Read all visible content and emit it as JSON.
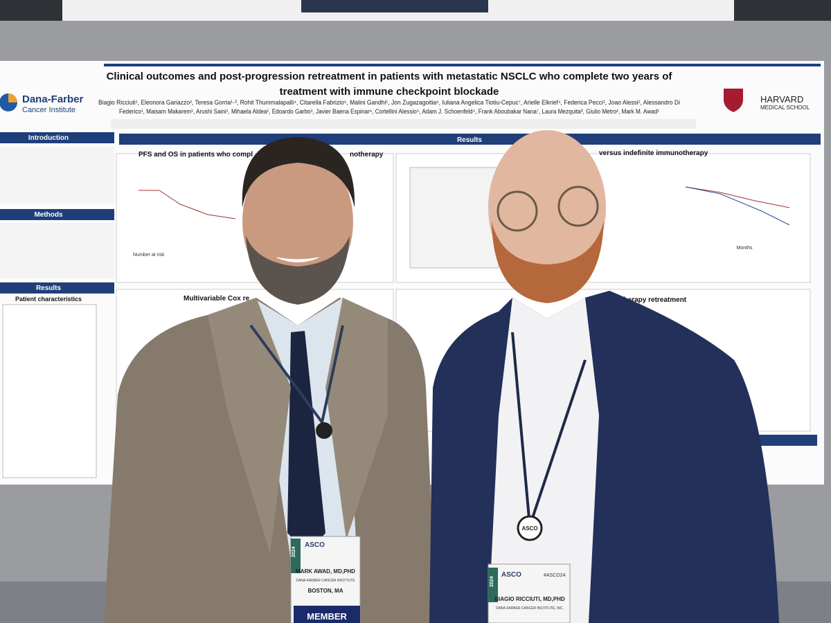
{
  "poster": {
    "title_lines": [
      "Clinical outcomes and post-progression retreatment in patients with metastatic NSCLC who complete two years of",
      "treatment with immune checkpoint blockade"
    ],
    "author_lines": [
      "Biagio Ricciuti¹, Eleonora Gariazzo², Teresa Gorria¹·³, Rohit Thummalapalli⁴, Citarella Fabrizio⁵, Malini Gandhi¹, Jon Zugazagoitia⁶, Iuliana Angelica Tiotiu-Cepuc⁷, Arielle Elkrief⁴, Federica Pecci¹, Joao Alessi¹, Alessandro Di",
      "Federico¹, Maisam Makarem¹, Arushi Saini¹, Mihaela Aldea¹, Edoardo Garbo¹, Javier Baena Espinar⁶, Cortellini Alessio⁵, Adam J. Schoenfeld⁴, Frank Aboubakar Nana⁷, Laura Mezquita³, Giulio Metro², Mark M. Awad¹"
    ],
    "logo_left": [
      "Dana-Farber",
      "Cancer Institute"
    ],
    "logo_right": [
      "HARVARD",
      "MEDICAL SCHOOL"
    ],
    "sections": [
      "Introduction",
      "Methods",
      "Results"
    ],
    "center_header": "Results",
    "patient_characteristics": "Patient characteristics",
    "panels": [
      "PFS and OS in patients who compl",
      "notherapy",
      "versus indefinite immunotherapy",
      "Multivariable Cox re",
      "notherapy retreatment"
    ],
    "axis_label": "Months",
    "number_at_risk": "Number at risk"
  },
  "badges": [
    {
      "org": "ASCO",
      "name": "MARK AWAD, MD,PHD",
      "inst": "DANA-FARBER CANCER INSTITUTE",
      "city": "BOSTON, MA",
      "type": "MEMBER",
      "year": "2024"
    },
    {
      "org": "ASCO",
      "name": "BIAGIO RICCIUTI, MD,PHD",
      "inst": "DANA-FARBER CANCER INSTITUTE, INC.",
      "tag": "#ASCO24",
      "year": "2024"
    }
  ],
  "lanyard_tag": "ASCO"
}
